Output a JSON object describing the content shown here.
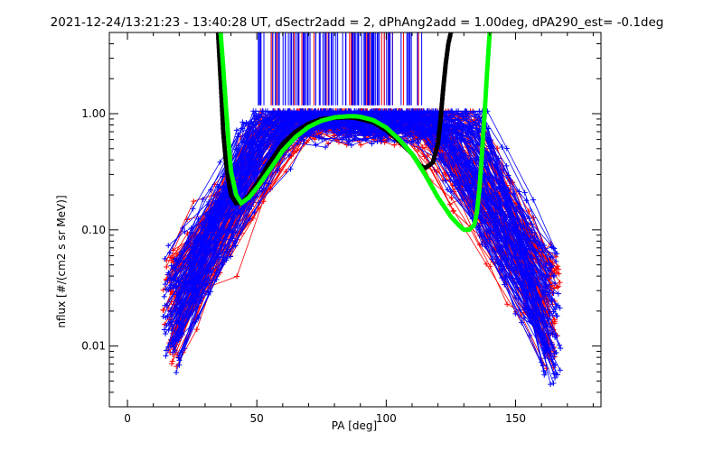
{
  "chart_data": {
    "type": "line",
    "title": "2021-12-24/13:21:23 - 13:40:28 UT, dSectr2add = 2, dPhAng2add = 1.00deg, dPA290_est=  -0.1deg",
    "xlabel": "PA [deg]",
    "ylabel": "nflux [#/(cm2 s sr MeV)]",
    "xlim": [
      -7,
      183
    ],
    "ylim": [
      0.003,
      5.0
    ],
    "yscale": "log",
    "x_ticks": [
      0,
      50,
      100,
      150
    ],
    "x_tick_labels": [
      "0",
      "50",
      "100",
      "150"
    ],
    "y_ticks": [
      0.01,
      0.1,
      1.0
    ],
    "y_tick_labels": [
      "0.01",
      "0.10",
      "1.00"
    ],
    "grid": false,
    "colors": {
      "red_series": "#ff0000",
      "blue_series": "#0000ff",
      "black_fit": "#000000",
      "green_fit": "#00ff00",
      "axes": "#000000"
    },
    "series": [
      {
        "color": "black",
        "style": "thick-dashed",
        "x": [
          35,
          36,
          37,
          38,
          39,
          40,
          42,
          44,
          47,
          50,
          55,
          60,
          65,
          70,
          75,
          80,
          85,
          88,
          90,
          95,
          100,
          105,
          110,
          113,
          115,
          118,
          120,
          121,
          122,
          123,
          124,
          125
        ],
        "y": [
          5.0,
          2.0,
          0.7,
          0.4,
          0.27,
          0.2,
          0.17,
          0.17,
          0.2,
          0.25,
          0.38,
          0.55,
          0.7,
          0.82,
          0.9,
          0.92,
          0.93,
          0.92,
          0.9,
          0.84,
          0.72,
          0.58,
          0.45,
          0.36,
          0.34,
          0.38,
          0.55,
          0.9,
          1.6,
          2.7,
          4.0,
          5.0
        ]
      },
      {
        "color": "green",
        "style": "thick-dashed",
        "x": [
          36,
          37,
          38,
          39,
          40,
          42,
          44,
          47,
          50,
          55,
          60,
          65,
          70,
          75,
          80,
          85,
          88,
          90,
          95,
          100,
          105,
          110,
          115,
          120,
          125,
          128,
          130,
          132,
          134,
          135,
          136,
          137,
          138,
          139,
          140
        ],
        "y": [
          5.0,
          2.5,
          1.2,
          0.6,
          0.32,
          0.2,
          0.17,
          0.19,
          0.23,
          0.33,
          0.48,
          0.63,
          0.77,
          0.87,
          0.93,
          0.95,
          0.95,
          0.94,
          0.88,
          0.76,
          0.6,
          0.45,
          0.3,
          0.19,
          0.13,
          0.11,
          0.1,
          0.1,
          0.11,
          0.14,
          0.22,
          0.45,
          1.0,
          2.3,
          5.0
        ]
      }
    ],
    "overlay_description_values": {
      "red_profile_count": 90,
      "blue_profile_count": 110,
      "profile_pa_min": 15,
      "profile_pa_max": 165
    }
  }
}
